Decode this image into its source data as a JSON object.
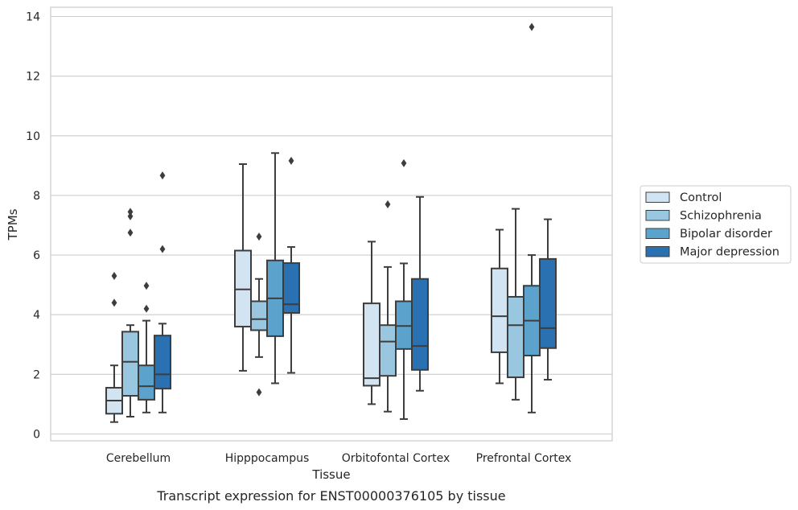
{
  "chart_data": {
    "type": "box",
    "xlabel": "Tissue",
    "ylabel": "TPMs",
    "caption": "Transcript expression for ENST00000376105 by tissue",
    "ylim": [
      -0.2,
      14.3
    ],
    "yticks": [
      "0",
      "2",
      "4",
      "6",
      "8",
      "10",
      "12",
      "14"
    ],
    "ytick_values": [
      0,
      2,
      4,
      6,
      8,
      10,
      12,
      14
    ],
    "grid": true,
    "legend_position": "right",
    "categories": [
      "Cerebellum",
      "Hipppocampus",
      "Orbitofontal Cortex",
      "Prefrontal Cortex"
    ],
    "series": [
      {
        "name": "Control",
        "color": "#d2e3f2",
        "boxes": [
          {
            "whislo": 0.4,
            "q1": 0.68,
            "med": 1.12,
            "q3": 1.55,
            "whishi": 2.3,
            "fliers": [
              4.4,
              5.3
            ]
          },
          {
            "whislo": 2.12,
            "q1": 3.6,
            "med": 4.85,
            "q3": 6.15,
            "whishi": 9.05,
            "fliers": []
          },
          {
            "whislo": 1.0,
            "q1": 1.62,
            "med": 1.87,
            "q3": 4.38,
            "whishi": 6.45,
            "fliers": []
          },
          {
            "whislo": 1.7,
            "q1": 2.74,
            "med": 3.95,
            "q3": 5.55,
            "whishi": 6.85,
            "fliers": []
          }
        ]
      },
      {
        "name": "Schizophrenia",
        "color": "#9ac7e0",
        "boxes": [
          {
            "whislo": 0.58,
            "q1": 1.28,
            "med": 2.42,
            "q3": 3.43,
            "whishi": 3.65,
            "fliers": [
              6.75,
              7.3,
              7.45
            ]
          },
          {
            "whislo": 2.58,
            "q1": 3.48,
            "med": 3.85,
            "q3": 4.45,
            "whishi": 5.2,
            "fliers": [
              1.4,
              6.62
            ]
          },
          {
            "whislo": 0.75,
            "q1": 1.95,
            "med": 3.1,
            "q3": 3.65,
            "whishi": 5.6,
            "fliers": [
              7.7
            ]
          },
          {
            "whislo": 1.15,
            "q1": 1.9,
            "med": 3.65,
            "q3": 4.6,
            "whishi": 7.55,
            "fliers": []
          }
        ]
      },
      {
        "name": "Bipolar disorder",
        "color": "#5ba2cd",
        "boxes": [
          {
            "whislo": 0.72,
            "q1": 1.15,
            "med": 1.6,
            "q3": 2.3,
            "whishi": 3.8,
            "fliers": [
              4.2,
              4.97
            ]
          },
          {
            "whislo": 1.7,
            "q1": 3.28,
            "med": 4.55,
            "q3": 5.82,
            "whishi": 9.42,
            "fliers": []
          },
          {
            "whislo": 0.5,
            "q1": 2.85,
            "med": 3.62,
            "q3": 4.45,
            "whishi": 5.72,
            "fliers": [
              9.08
            ]
          },
          {
            "whislo": 0.72,
            "q1": 2.63,
            "med": 3.8,
            "q3": 4.97,
            "whishi": 6.0,
            "fliers": [
              13.65
            ]
          }
        ]
      },
      {
        "name": "Major depression",
        "color": "#2a71b2",
        "boxes": [
          {
            "whislo": 0.72,
            "q1": 1.52,
            "med": 2.0,
            "q3": 3.3,
            "whishi": 3.7,
            "fliers": [
              6.2,
              8.67
            ]
          },
          {
            "whislo": 2.05,
            "q1": 4.06,
            "med": 4.35,
            "q3": 5.73,
            "whishi": 6.27,
            "fliers": [
              9.16
            ]
          },
          {
            "whislo": 1.45,
            "q1": 2.15,
            "med": 2.95,
            "q3": 5.2,
            "whishi": 7.95,
            "fliers": []
          },
          {
            "whislo": 1.82,
            "q1": 2.88,
            "med": 3.55,
            "q3": 5.87,
            "whishi": 7.2,
            "fliers": []
          }
        ]
      }
    ]
  }
}
